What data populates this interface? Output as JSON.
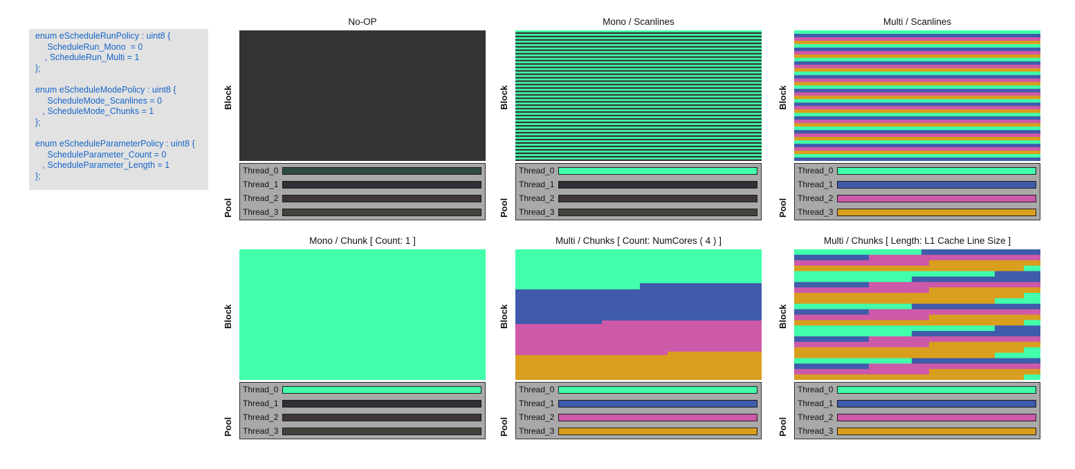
{
  "code": {
    "lines": [
      "enum eScheduleRunPolicy : uint8 {",
      "     ScheduleRun_Mono  = 0",
      "    , ScheduleRun_Multi = 1",
      "};",
      "",
      "enum eScheduleModePolicy : uint8 {",
      "     ScheduleMode_Scanlines = 0",
      "   , ScheduleMode_Chunks = 1",
      "};",
      "",
      "enum eScheduleParameterPolicy : uint8 {",
      "     ScheduleParameter_Count = 0",
      "   , ScheduleParameter_Length = 1",
      "};"
    ]
  },
  "labels": {
    "block": "Block",
    "pool": "Pool"
  },
  "colors": {
    "Thread_0": "#41ffab",
    "Thread_1": "#3f5baa",
    "Thread_2": "#cd59a9",
    "Thread_3": "#d99e1e",
    "block_bg": "#333333",
    "idle_0": "#2f4b42",
    "idle_1": "#303036",
    "idle_2": "#3e363c",
    "idle_3": "#44423c",
    "stripe_gap": "#333333"
  },
  "panels": [
    {
      "id": "noop",
      "title": "No-OP",
      "pattern": "none",
      "threads": [
        {
          "name": "Thread_0",
          "active": false
        },
        {
          "name": "Thread_1",
          "active": false
        },
        {
          "name": "Thread_2",
          "active": false
        },
        {
          "name": "Thread_3",
          "active": false
        }
      ]
    },
    {
      "id": "mono-scanlines",
      "title": "Mono / Scanlines",
      "pattern": "mono-scanlines",
      "threads": [
        {
          "name": "Thread_0",
          "active": true
        },
        {
          "name": "Thread_1",
          "active": false
        },
        {
          "name": "Thread_2",
          "active": false
        },
        {
          "name": "Thread_3",
          "active": false
        }
      ]
    },
    {
      "id": "multi-scanlines",
      "title": "Multi / Scanlines",
      "pattern": "multi-scanlines",
      "threads": [
        {
          "name": "Thread_0",
          "active": true
        },
        {
          "name": "Thread_1",
          "active": true
        },
        {
          "name": "Thread_2",
          "active": true
        },
        {
          "name": "Thread_3",
          "active": true
        }
      ]
    },
    {
      "id": "mono-chunk",
      "title": "Mono / Chunk [ Count: 1 ]",
      "pattern": "mono-chunk",
      "threads": [
        {
          "name": "Thread_0",
          "active": true
        },
        {
          "name": "Thread_1",
          "active": false
        },
        {
          "name": "Thread_2",
          "active": false
        },
        {
          "name": "Thread_3",
          "active": false
        }
      ]
    },
    {
      "id": "multi-chunks-count",
      "title": "Multi / Chunks [ Count: NumCores ( 4 ) ]",
      "pattern": "multi-chunks-count",
      "threads": [
        {
          "name": "Thread_0",
          "active": true
        },
        {
          "name": "Thread_1",
          "active": true
        },
        {
          "name": "Thread_2",
          "active": true
        },
        {
          "name": "Thread_3",
          "active": true
        }
      ]
    },
    {
      "id": "multi-chunks-length",
      "title": "Multi / Chunks [ Length: L1 Cache Line Size ]",
      "pattern": "multi-chunks-length",
      "threads": [
        {
          "name": "Thread_0",
          "active": true
        },
        {
          "name": "Thread_1",
          "active": true
        },
        {
          "name": "Thread_2",
          "active": true
        },
        {
          "name": "Thread_3",
          "active": true
        }
      ]
    }
  ]
}
